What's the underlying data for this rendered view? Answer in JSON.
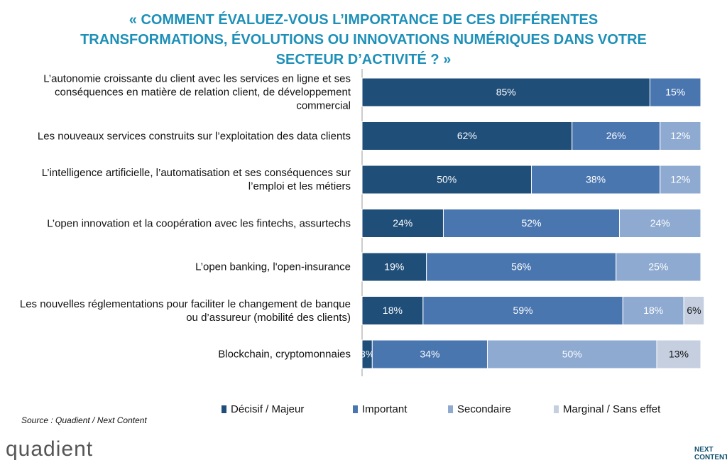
{
  "chart_data": {
    "type": "stacked-bar-horizontal",
    "title": "« COMMENT ÉVALUEZ-VOUS L’IMPORTANCE DE CES DIFFÉRENTES TRANSFORMATIONS, ÉVOLUTIONS OU INNOVATIONS NUMÉRIQUES DANS VOTRE SECTEUR D’ACTIVITÉ ? »",
    "categories": [
      "L’autonomie croissante du client avec les services en ligne et ses conséquences en matière de relation client, de développement commercial",
      "Les nouveaux services construits sur l’exploitation des data clients",
      "L’intelligence artificielle, l’automatisation et ses conséquences sur l’emploi et les métiers",
      "L’open innovation et la coopération avec les fintechs, assurtechs",
      "L’open banking, l'open-insurance",
      "Les nouvelles réglementations pour faciliter le changement de banque ou d’assureur (mobilité des clients)",
      "Blockchain, cryptomonnaies"
    ],
    "xlim": [
      0,
      100
    ],
    "series": [
      {
        "name": "Décisif / Majeur",
        "color": "#1f4e79",
        "values": [
          85,
          62,
          50,
          24,
          19,
          18,
          3
        ],
        "value_labels": [
          "85%",
          "62%",
          "50%",
          "24%",
          "19%",
          "18%",
          "3%"
        ]
      },
      {
        "name": "Important",
        "color": "#4a76b0",
        "values": [
          15,
          26,
          38,
          52,
          56,
          59,
          34
        ],
        "value_labels": [
          "15%",
          "26%",
          "38%",
          "52%",
          "56%",
          "59%",
          "34%"
        ]
      },
      {
        "name": "Secondaire",
        "color": "#8eaad1",
        "values": [
          null,
          12,
          12,
          24,
          25,
          18,
          50
        ],
        "value_labels": [
          null,
          "12%",
          "12%",
          "24%",
          "25%",
          "18%",
          "50%"
        ]
      },
      {
        "name": "Marginal / Sans effet",
        "color": "#c5cfe0",
        "values": [
          null,
          null,
          null,
          null,
          null,
          6,
          13
        ],
        "value_labels": [
          null,
          null,
          null,
          null,
          null,
          "6%",
          "13%"
        ]
      }
    ],
    "source": "Source : Quadient / Next Content"
  },
  "logos": {
    "left": "quadient",
    "right": "NEXT CONTENT"
  }
}
